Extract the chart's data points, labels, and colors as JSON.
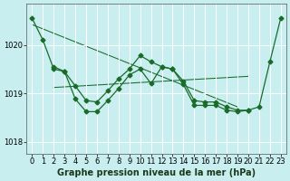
{
  "xlabel": "Graphe pression niveau de la mer (hPa)",
  "bg_color": "#c8eef0",
  "grid_color": "#ffffff",
  "line_color": "#1a6b2a",
  "ylim": [
    1017.75,
    1020.85
  ],
  "xlim": [
    -0.5,
    23.5
  ],
  "yticks": [
    1018,
    1019,
    1020
  ],
  "x_ticks": [
    0,
    1,
    2,
    3,
    4,
    5,
    6,
    7,
    8,
    9,
    10,
    11,
    12,
    13,
    14,
    15,
    16,
    17,
    18,
    19,
    20,
    21,
    22,
    23
  ],
  "series_a_x": [
    0,
    1,
    2,
    3,
    4,
    5,
    6,
    7,
    8,
    9,
    10,
    11,
    12,
    13,
    14,
    15,
    16,
    17,
    18,
    19,
    20,
    21,
    22,
    23
  ],
  "series_a_y": [
    1020.55,
    1020.1,
    1019.5,
    1019.45,
    1019.15,
    1018.85,
    1018.82,
    1019.05,
    1019.3,
    1019.5,
    1019.78,
    1019.65,
    1019.55,
    1019.5,
    1019.25,
    1018.85,
    1018.82,
    1018.82,
    1018.72,
    1018.65,
    1018.65,
    1018.72,
    1019.65,
    1020.55
  ],
  "series_b_x": [
    2,
    3,
    4,
    5,
    6,
    7,
    8,
    9,
    10,
    11,
    12,
    13,
    14,
    15,
    16,
    17,
    18,
    19,
    20
  ],
  "series_b_y": [
    1019.55,
    1019.45,
    1018.88,
    1018.62,
    1018.62,
    1018.85,
    1019.1,
    1019.38,
    1019.5,
    1019.2,
    1019.55,
    1019.5,
    1019.18,
    1018.75,
    1018.75,
    1018.75,
    1018.65,
    1018.62,
    1018.65
  ],
  "trend1_x": [
    0,
    19
  ],
  "trend1_y": [
    1020.42,
    1018.72
  ],
  "trend2_x": [
    2,
    20
  ],
  "trend2_y": [
    1019.12,
    1019.35
  ],
  "lw": 0.9,
  "ms": 2.5,
  "xlabel_fontsize": 7,
  "tick_fontsize": 6,
  "figsize": [
    3.2,
    2.0
  ],
  "dpi": 100
}
